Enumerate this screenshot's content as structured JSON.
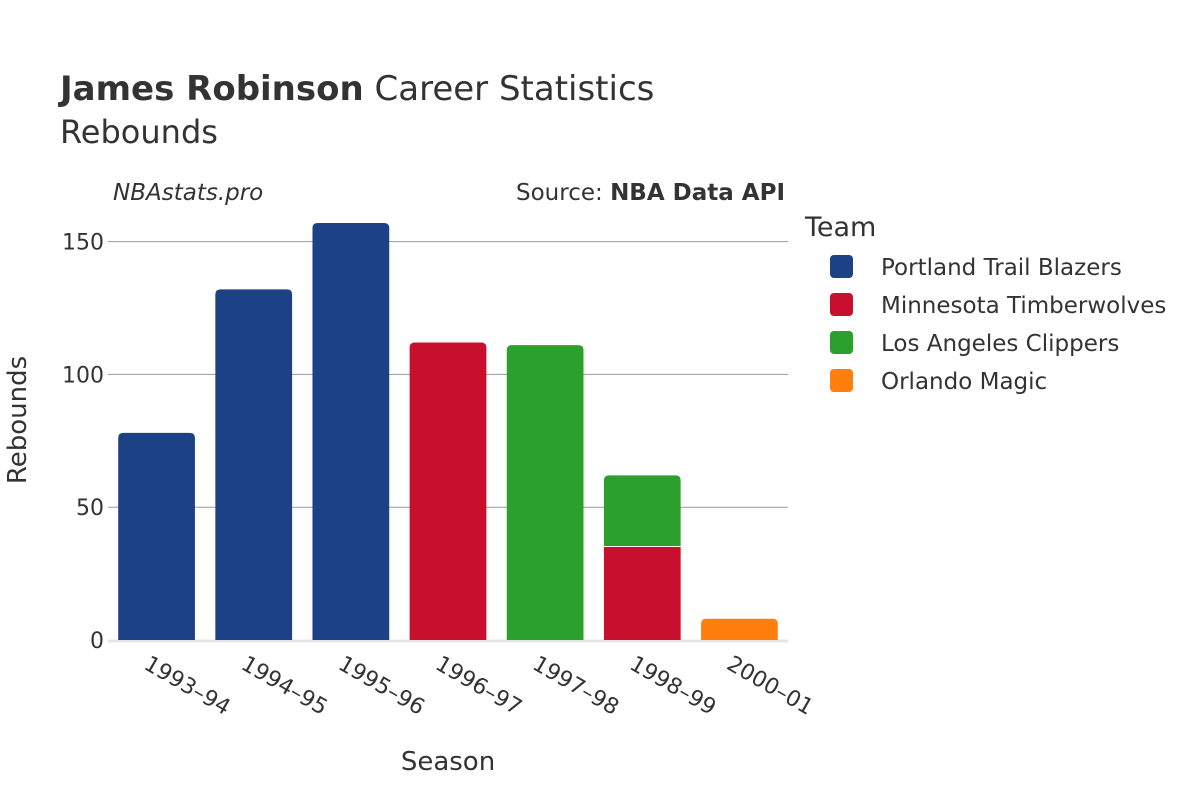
{
  "chart_data": {
    "type": "bar",
    "stacked": true,
    "title": {
      "player": "James Robinson",
      "rest": " Career Statistics",
      "subtitle": "Rebounds"
    },
    "watermark": "NBAstats.pro",
    "source": {
      "prefix": "Source: ",
      "name": "NBA Data API"
    },
    "xlabel": "Season",
    "ylabel": "Rebounds",
    "ylim": [
      0,
      160
    ],
    "yticks": [
      0,
      50,
      100,
      150
    ],
    "grid": true,
    "legend_title": "Team",
    "legend_position": "right",
    "categories": [
      "1993–94",
      "1994–95",
      "1995–96",
      "1996–97",
      "1997–98",
      "1998–99",
      "2000–01"
    ],
    "series": [
      {
        "name": "Portland Trail Blazers",
        "color": "#1c4185",
        "values": [
          78,
          132,
          157,
          0,
          0,
          0,
          0
        ]
      },
      {
        "name": "Minnesota Timberwolves",
        "color": "#c8102e",
        "values": [
          0,
          0,
          0,
          112,
          0,
          35,
          0
        ]
      },
      {
        "name": "Los Angeles Clippers",
        "color": "#2ca02c",
        "values": [
          0,
          0,
          0,
          0,
          111,
          27,
          0
        ]
      },
      {
        "name": "Orlando Magic",
        "color": "#ff7f0e",
        "values": [
          0,
          0,
          0,
          0,
          0,
          0,
          8
        ]
      }
    ]
  }
}
